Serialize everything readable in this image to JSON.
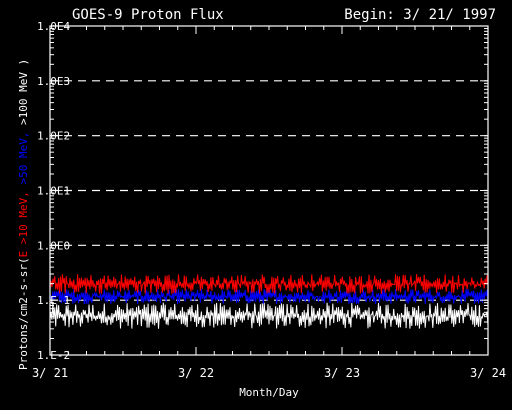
{
  "header": {
    "title": "GOES-9 Proton Flux",
    "begin": "Begin: 3/ 21/ 1997"
  },
  "chart_data": {
    "type": "line",
    "title": "GOES-9 Proton Flux",
    "xlabel": "Month/Day",
    "ylabel": {
      "prefix": "Protons/cm2-s-sr(",
      "parts": [
        {
          "text": "E >10 MeV, ",
          "color": "#ff0000"
        },
        {
          "text": ">50 MeV, ",
          "color": "#0000ff"
        },
        {
          "text": ">100 MeV )",
          "color": "#ffffff"
        }
      ]
    },
    "y_scale": "log",
    "ylim": [
      0.01,
      10000
    ],
    "y_ticks": [
      {
        "value": 10000,
        "label": "1.0E4"
      },
      {
        "value": 1000,
        "label": "1.0E3"
      },
      {
        "value": 100,
        "label": "1.0E2"
      },
      {
        "value": 10,
        "label": "1.0E1"
      },
      {
        "value": 1,
        "label": "1.0E0"
      },
      {
        "value": 0.1,
        "label": "1.E-1"
      },
      {
        "value": 0.01,
        "label": "1.E-2"
      }
    ],
    "gridlines": [
      1000,
      100,
      10,
      1,
      0.1
    ],
    "grid": "dashed horizontal",
    "xlim": [
      0,
      3
    ],
    "x_ticks": [
      {
        "value": 0,
        "label": "3/ 21"
      },
      {
        "value": 1,
        "label": "3/ 22"
      },
      {
        "value": 2,
        "label": "3/ 23"
      },
      {
        "value": 3,
        "label": "3/ 24"
      }
    ],
    "series": [
      {
        "name": ">100 MeV",
        "color": "#ffffff",
        "low": 0.03,
        "high": 0.09
      },
      {
        "name": ">50 MeV",
        "color": "#0000ff",
        "low": 0.085,
        "high": 0.16
      },
      {
        "name": ">10 MeV",
        "color": "#ff0000",
        "low": 0.13,
        "high": 0.3
      }
    ]
  }
}
